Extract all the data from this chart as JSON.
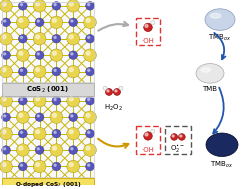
{
  "bg_color": "#ffffff",
  "label_top": "CoS$_2$ (001)",
  "label_bot": "O-doped CoS$_2$ (001)",
  "h2o2_label": "H$_2$O$_2$",
  "oh_label": "·OH",
  "o2_label": "O$_2^{\\bullet-}$",
  "tmb_label": "TMB",
  "tmbox_label": "TMB$_{ox}$",
  "tmbox2_label": "TMB$_{ox}$",
  "S_color": "#e8d44d",
  "Co_color": "#5555bb",
  "O_color": "#cc2222",
  "bond_color": "#c8b800",
  "tmb_fill": "#c8d4e8",
  "tmb_ec": "#8899bb",
  "tmb_hi": "#e8eef8",
  "tmbox2_fill": "#1a2a60",
  "tmbox2_ec": "#000020",
  "oh_box_color": "#dd3333",
  "o2_box_color": "#555555",
  "arrow_gray": "#aaaaaa",
  "arrow_blue": "#2255aa",
  "arrow_gold": "#cc9900",
  "lbl_top_fc": "#d8d8d8",
  "lbl_top_ec": "#aaaaaa",
  "lbl_bot_fc": "#f5e060",
  "lbl_bot_ec": "#c8a800"
}
